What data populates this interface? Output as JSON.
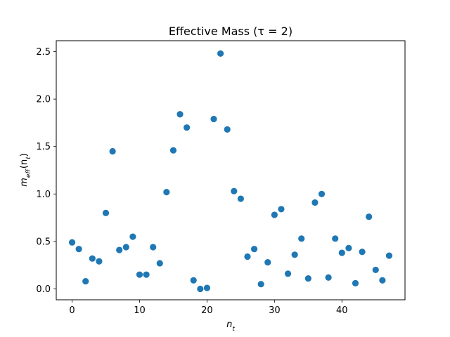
{
  "chart_data": {
    "type": "scatter",
    "title": "Effective Mass (τ = 2)",
    "xlabel_base": "n",
    "xlabel_sub": "t",
    "ylabel_base": "m",
    "ylabel_sub": "eff",
    "ylabel_arg": "(n",
    "ylabel_arg_sub": "t",
    "ylabel_close": ")",
    "xlim": [
      -2.35,
      49.35
    ],
    "ylim": [
      -0.115,
      2.615
    ],
    "xticks": [
      0,
      10,
      20,
      30,
      40
    ],
    "xtick_labels": [
      "0",
      "10",
      "20",
      "30",
      "40"
    ],
    "yticks": [
      0.0,
      0.5,
      1.0,
      1.5,
      2.0,
      2.5
    ],
    "ytick_labels": [
      "0.0",
      "0.5",
      "1.0",
      "1.5",
      "2.0",
      "2.5"
    ],
    "grid": false,
    "marker_color": "#1f77b4",
    "series": [
      {
        "x": [
          0,
          1,
          2,
          3,
          4,
          5,
          6,
          7,
          8,
          9,
          10,
          11,
          12,
          13,
          14,
          15,
          16,
          17,
          18,
          19,
          20,
          21,
          22,
          23,
          24,
          25,
          26,
          27,
          28,
          29,
          30,
          31,
          32,
          33,
          34,
          35,
          36,
          37,
          38,
          39,
          40,
          41,
          42,
          43,
          44,
          45,
          46,
          47
        ],
        "y": [
          0.49,
          0.42,
          0.08,
          0.32,
          0.29,
          0.8,
          1.45,
          0.41,
          0.44,
          0.55,
          0.15,
          0.15,
          0.44,
          0.27,
          1.02,
          1.46,
          1.84,
          1.7,
          0.09,
          0.0,
          0.01,
          1.79,
          2.48,
          1.68,
          1.03,
          0.95,
          0.34,
          0.42,
          0.05,
          0.28,
          0.78,
          0.84,
          0.16,
          0.36,
          0.53,
          0.11,
          0.91,
          1.0,
          0.12,
          0.53,
          0.38,
          0.43,
          0.06,
          0.39,
          0.76,
          0.2,
          0.09,
          0.35
        ]
      }
    ]
  }
}
